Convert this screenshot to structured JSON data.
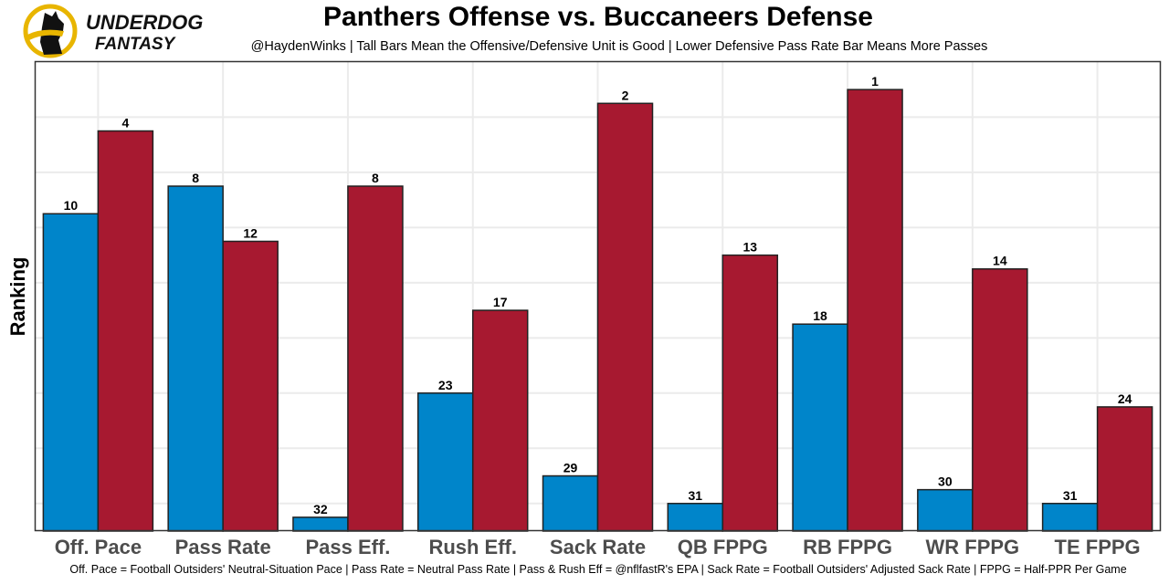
{
  "logo": {
    "brand_line1": "UNDERDOG",
    "brand_line2": "FANTASY",
    "accent_color": "#e8b500"
  },
  "header": {
    "title": "Panthers Offense vs. Buccaneers Defense",
    "subtitle": "@HaydenWinks | Tall Bars Mean the Offensive/Defensive Unit is Good | Lower Defensive Pass Rate Bar Means More Passes"
  },
  "caption": "Off. Pace = Football Outsiders' Neutral-Situation Pace | Pass Rate = Neutral Pass Rate | Pass & Rush Eff = @nflfastR's EPA | Sack Rate = Football Outsiders' Adjusted Sack Rate | FPPG = Half-PPR Per Game",
  "chart_data": {
    "type": "bar",
    "title": "Panthers Offense vs. Buccaneers Defense",
    "xlabel": "",
    "ylabel": "Ranking",
    "note": "Bar height = 33 - rank (rank 1 tallest)",
    "rank_max": 32,
    "grid": true,
    "legend": "none",
    "categories": [
      "Off. Pace",
      "Pass Rate",
      "Pass Eff.",
      "Rush Eff.",
      "Sack Rate",
      "QB FPPG",
      "RB FPPG",
      "WR FPPG",
      "TE FPPG"
    ],
    "series": [
      {
        "name": "Panthers Offense",
        "color": "#0085ca",
        "values": [
          10,
          8,
          32,
          23,
          29,
          31,
          18,
          30,
          31
        ]
      },
      {
        "name": "Buccaneers Defense",
        "color": "#a71930",
        "values": [
          4,
          12,
          8,
          17,
          2,
          13,
          1,
          14,
          24
        ]
      }
    ]
  }
}
